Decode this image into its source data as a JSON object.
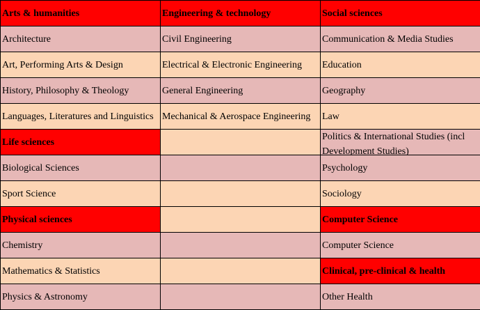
{
  "table": {
    "rows": [
      [
        {
          "text": "Arts & humanities",
          "kind": "header"
        },
        {
          "text": "Engineering & technology",
          "kind": "header"
        },
        {
          "text": "Social sciences",
          "kind": "header"
        }
      ],
      [
        {
          "text": "Architecture",
          "kind": "pink"
        },
        {
          "text": "Civil Engineering",
          "kind": "pink"
        },
        {
          "text": "Communication & Media Studies",
          "kind": "pink"
        }
      ],
      [
        {
          "text": "Art, Performing Arts & Design",
          "kind": "beige"
        },
        {
          "text": "Electrical & Electronic Engineering",
          "kind": "beige"
        },
        {
          "text": "Education",
          "kind": "beige"
        }
      ],
      [
        {
          "text": "History, Philosophy & Theology",
          "kind": "pink"
        },
        {
          "text": "General Engineering",
          "kind": "pink"
        },
        {
          "text": "Geography",
          "kind": "pink"
        }
      ],
      [
        {
          "text": "Languages, Literatures and Linguistics",
          "kind": "beige"
        },
        {
          "text": "Mechanical & Aerospace Engineering",
          "kind": "beige"
        },
        {
          "text": "Law",
          "kind": "beige"
        }
      ],
      [
        {
          "text": "Life sciences",
          "kind": "header"
        },
        {
          "text": "",
          "kind": "beige"
        },
        {
          "text": "Politics & International Studies (incl Development Studies)",
          "kind": "pink"
        }
      ],
      [
        {
          "text": "Biological Sciences",
          "kind": "pink"
        },
        {
          "text": "",
          "kind": "pink"
        },
        {
          "text": "Psychology",
          "kind": "pink"
        }
      ],
      [
        {
          "text": "Sport Science",
          "kind": "beige"
        },
        {
          "text": "",
          "kind": "beige"
        },
        {
          "text": "Sociology",
          "kind": "beige"
        }
      ],
      [
        {
          "text": "Physical sciences",
          "kind": "header"
        },
        {
          "text": "",
          "kind": "beige"
        },
        {
          "text": "Computer Science",
          "kind": "header"
        }
      ],
      [
        {
          "text": "Chemistry",
          "kind": "pink"
        },
        {
          "text": "",
          "kind": "pink"
        },
        {
          "text": "Computer Science",
          "kind": "pink"
        }
      ],
      [
        {
          "text": "Mathematics & Statistics",
          "kind": "beige"
        },
        {
          "text": "",
          "kind": "beige"
        },
        {
          "text": "Clinical, pre-clinical & health",
          "kind": "header"
        }
      ],
      [
        {
          "text": "Physics & Astronomy",
          "kind": "pink"
        },
        {
          "text": "",
          "kind": "pink"
        },
        {
          "text": "Other Health",
          "kind": "pink"
        }
      ]
    ]
  },
  "colors": {
    "header": "#ff0000",
    "pink": "#e6b8b7",
    "beige": "#fcd5b4",
    "border": "#000000"
  }
}
